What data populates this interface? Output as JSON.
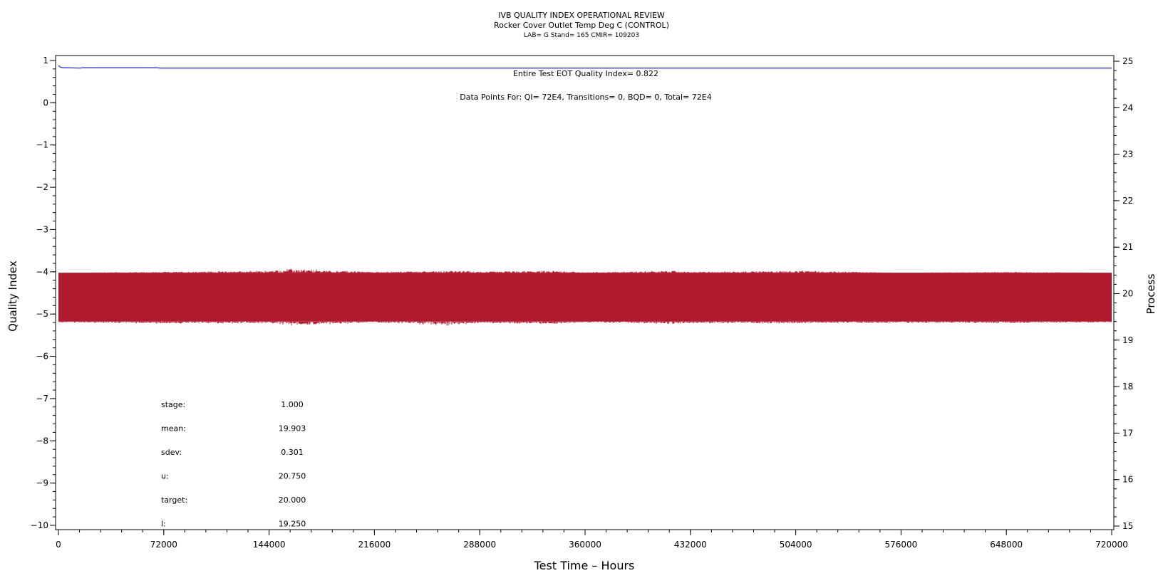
{
  "chart_data": {
    "type": "line",
    "title": "IVB QUALITY INDEX OPERATIONAL REVIEW",
    "subtitle": "Rocker Cover Outlet Temp Deg C (CONTROL)",
    "subtitle2": "LAB= G Stand= 165 CMIR= 109203",
    "xlabel": "Test Time – Hours",
    "ylabel": "Quality Index",
    "y2label": "Process",
    "xlim": [
      0,
      720000
    ],
    "ylim": [
      -10,
      1
    ],
    "y2lim": [
      15,
      25
    ],
    "xticks": [
      0,
      72000,
      144000,
      216000,
      288000,
      360000,
      432000,
      504000,
      576000,
      648000,
      720000
    ],
    "yticks": [
      1,
      0,
      -1,
      -2,
      -3,
      -4,
      -5,
      -6,
      -7,
      -8,
      -9,
      -10
    ],
    "y2ticks": [
      25,
      24,
      23,
      22,
      21,
      20,
      19,
      18,
      17,
      16,
      15
    ],
    "grid": false,
    "annotations": {
      "eot": "Entire Test EOT Quality Index=   0.822",
      "points": "Data Points For: QI=  72E4, Transitions=     0, BQD=     0, Total=  72E4"
    },
    "stats": [
      {
        "label": "stage:",
        "value": "1.000"
      },
      {
        "label": "mean:",
        "value": "19.903"
      },
      {
        "label": "sdev:",
        "value": "0.301"
      },
      {
        "label": "u:",
        "value": "20.750"
      },
      {
        "label": "target:",
        "value": "20.000"
      },
      {
        "label": "l:",
        "value": "19.250"
      }
    ],
    "series": [
      {
        "axis": "left",
        "color": "#1f1fb4",
        "x": [
          0,
          1500,
          3000,
          6000,
          15000,
          16000,
          68000,
          69000,
          720000
        ],
        "values": [
          0.88,
          0.84,
          0.83,
          0.83,
          0.82,
          0.83,
          0.83,
          0.822,
          0.822
        ]
      },
      {
        "axis": "right",
        "color": "#b01a2e",
        "mean": 19.903,
        "band_low": 19.4,
        "band_high": 20.45,
        "x": [
          0,
          72000,
          144000,
          160000,
          216000,
          270000,
          288000,
          340000,
          360000,
          420000,
          432000,
          504000,
          576000,
          648000,
          720000
        ],
        "upper": [
          20.45,
          20.47,
          20.5,
          20.55,
          20.47,
          20.5,
          20.48,
          20.5,
          20.46,
          20.5,
          20.47,
          20.5,
          20.45,
          20.47,
          20.45
        ],
        "lower": [
          19.38,
          19.35,
          19.36,
          19.3,
          19.38,
          19.3,
          19.37,
          19.33,
          19.38,
          19.34,
          19.36,
          19.35,
          19.37,
          19.36,
          19.38
        ]
      }
    ]
  }
}
